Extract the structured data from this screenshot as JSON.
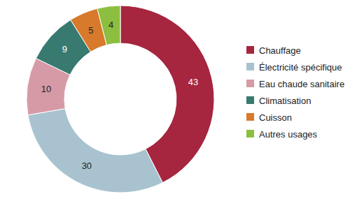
{
  "chart_data": {
    "type": "donut",
    "categories": [
      "Chauffage",
      "Électricité spécifique",
      "Eau chaude sanitaire",
      "Climatisation",
      "Cuisson",
      "Autres usages"
    ],
    "values": [
      43,
      30,
      10,
      9,
      5,
      4
    ],
    "colors": [
      "#a6253f",
      "#a8c3cf",
      "#d69aa6",
      "#387a70",
      "#d87a2b",
      "#8cbf3f"
    ],
    "data_labels": true,
    "legend": "right"
  }
}
